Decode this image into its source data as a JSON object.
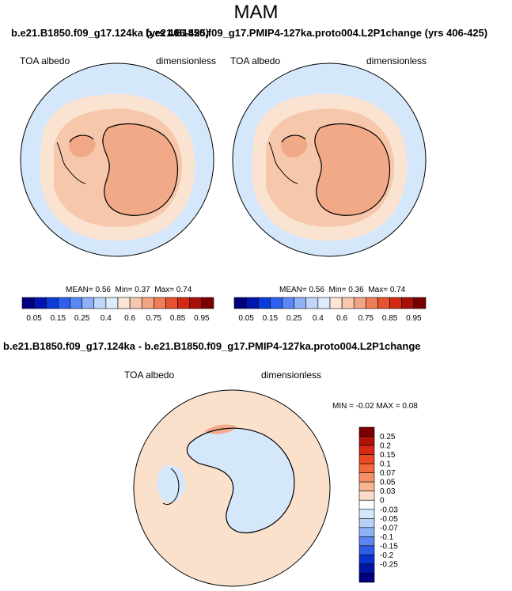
{
  "page": {
    "season": "MAM"
  },
  "panels": [
    {
      "run_title": "b.e21.B1850.f09_g17.124ka (yrs 406-425)",
      "variable": "TOA albedo",
      "units": "dimensionless",
      "stats": {
        "mean_label": "MEAN=",
        "mean": "0.56",
        "min_label": "Min=",
        "min": "0.37",
        "max_label": "Max=",
        "max": "0.74"
      }
    },
    {
      "run_title": "b.e21.B1850.f09_g17.PMIP4-127ka.proto004.L2P1change (yrs 406-425)",
      "variable": "TOA albedo",
      "units": "dimensionless",
      "stats": {
        "mean_label": "MEAN=",
        "mean": "0.56",
        "min_label": "Min=",
        "min": "0.36",
        "max_label": "Max=",
        "max": "0.74"
      }
    }
  ],
  "difference": {
    "title": "b.e21.B1850.f09_g17.124ka - b.e21.B1850.f09_g17.PMIP4-127ka.proto004.L2P1change",
    "variable": "TOA albedo",
    "units": "dimensionless",
    "min_label": "MIN =",
    "min": "-0.02",
    "max_label": "MAX =",
    "max": "0.08"
  },
  "chart_data": [
    {
      "type": "heatmap",
      "projection": "south-polar-stereographic",
      "title": "b.e21.B1850.f09_g17.124ka (yrs 406-425)",
      "variable": "TOA albedo",
      "units": "dimensionless",
      "mean": 0.56,
      "min": 0.37,
      "max": 0.74,
      "colorbar": {
        "orientation": "horizontal",
        "levels": [
          0.05,
          0.1,
          0.15,
          0.2,
          0.25,
          0.3,
          0.4,
          0.5,
          0.6,
          0.7,
          0.75,
          0.8,
          0.85,
          0.9,
          0.95
        ],
        "tick_labels": [
          "0.05",
          "0.15",
          "0.25",
          "0.4",
          "0.6",
          "0.75",
          "0.85",
          "0.95"
        ],
        "colors": [
          "#00007f",
          "#0015b0",
          "#0a3bd8",
          "#2f5fef",
          "#5b86f5",
          "#8fb1f7",
          "#c0d6f8",
          "#ddebfb",
          "#fce6d8",
          "#f8c8ae",
          "#f3a583",
          "#ef7d58",
          "#e8532f",
          "#d22815",
          "#a80f07",
          "#7a0000"
        ]
      }
    },
    {
      "type": "heatmap",
      "projection": "south-polar-stereographic",
      "title": "b.e21.B1850.f09_g17.PMIP4-127ka.proto004.L2P1change (yrs 406-425)",
      "variable": "TOA albedo",
      "units": "dimensionless",
      "mean": 0.56,
      "min": 0.36,
      "max": 0.74,
      "colorbar": {
        "orientation": "horizontal",
        "levels": [
          0.05,
          0.1,
          0.15,
          0.2,
          0.25,
          0.3,
          0.4,
          0.5,
          0.6,
          0.7,
          0.75,
          0.8,
          0.85,
          0.9,
          0.95
        ],
        "tick_labels": [
          "0.05",
          "0.15",
          "0.25",
          "0.4",
          "0.6",
          "0.75",
          "0.85",
          "0.95"
        ],
        "colors": [
          "#00007f",
          "#0015b0",
          "#0a3bd8",
          "#2f5fef",
          "#5b86f5",
          "#8fb1f7",
          "#c0d6f8",
          "#ddebfb",
          "#fce6d8",
          "#f8c8ae",
          "#f3a583",
          "#ef7d58",
          "#e8532f",
          "#d22815",
          "#a80f07",
          "#7a0000"
        ]
      }
    },
    {
      "type": "heatmap",
      "projection": "south-polar-stereographic",
      "title": "b.e21.B1850.f09_g17.124ka - b.e21.B1850.f09_g17.PMIP4-127ka.proto004.L2P1change",
      "variable": "TOA albedo",
      "units": "dimensionless",
      "min": -0.02,
      "max": 0.08,
      "colorbar": {
        "orientation": "vertical",
        "tick_labels": [
          "0.25",
          "0.2",
          "0.15",
          "0.1",
          "0.07",
          "0.05",
          "0.03",
          "0",
          "-0.03",
          "-0.05",
          "-0.07",
          "-0.1",
          "-0.15",
          "-0.2",
          "-0.25"
        ],
        "colors": [
          "#7a0000",
          "#b01207",
          "#d82a12",
          "#ea4a22",
          "#f26a3c",
          "#f58f66",
          "#f8b692",
          "#fbdcc6",
          "#ffffff",
          "#d6e7fb",
          "#b6d0f8",
          "#8fb1f4",
          "#5c86ef",
          "#2f5ce6",
          "#0a32cc",
          "#0015a5",
          "#00007f"
        ]
      }
    }
  ]
}
